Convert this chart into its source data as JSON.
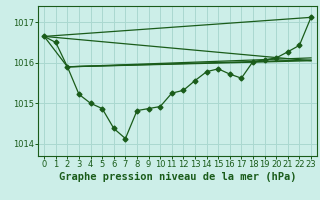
{
  "background_color": "#cceee8",
  "grid_color": "#aad8d0",
  "line_color": "#1a5c1a",
  "title": "Graphe pression niveau de la mer (hPa)",
  "ylim": [
    1013.7,
    1017.4
  ],
  "xlim": [
    -0.5,
    23.5
  ],
  "yticks": [
    1014,
    1015,
    1016,
    1017
  ],
  "xticks": [
    0,
    1,
    2,
    3,
    4,
    5,
    6,
    7,
    8,
    9,
    10,
    11,
    12,
    13,
    14,
    15,
    16,
    17,
    18,
    19,
    20,
    21,
    22,
    23
  ],
  "series1_x": [
    0,
    1,
    2,
    3,
    4,
    5,
    6,
    7,
    8,
    9,
    10,
    11,
    12,
    13,
    14,
    15,
    16,
    17,
    18,
    19,
    20,
    21,
    22,
    23
  ],
  "series1_y": [
    1016.65,
    1016.5,
    1015.9,
    1015.22,
    1015.0,
    1014.87,
    1014.38,
    1014.13,
    1014.82,
    1014.87,
    1014.92,
    1015.25,
    1015.32,
    1015.56,
    1015.78,
    1015.85,
    1015.72,
    1015.62,
    1016.03,
    1016.07,
    1016.12,
    1016.27,
    1016.43,
    1017.12
  ],
  "trend1_x": [
    0,
    23
  ],
  "trend1_y": [
    1016.65,
    1017.12
  ],
  "trend2_x": [
    2,
    23
  ],
  "trend2_y": [
    1015.9,
    1016.07
  ],
  "trend3_x": [
    2,
    23
  ],
  "trend3_y": [
    1015.9,
    1016.12
  ],
  "trend4_x": [
    0,
    2,
    23
  ],
  "trend4_y": [
    1016.65,
    1015.9,
    1016.05
  ],
  "trend5_x": [
    0,
    23
  ],
  "trend5_y": [
    1016.65,
    1016.05
  ],
  "marker_size": 2.5,
  "line_width": 0.9,
  "title_fontsize": 7.5,
  "tick_fontsize": 6.0
}
